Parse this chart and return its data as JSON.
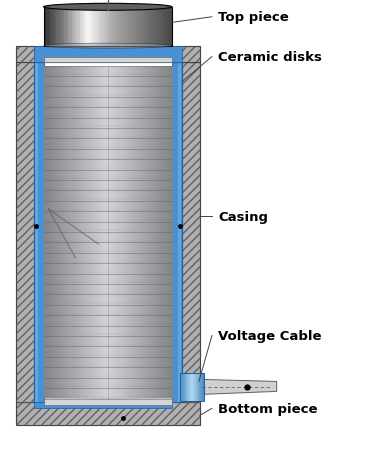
{
  "title": "",
  "background_color": "#ffffff",
  "labels": {
    "top_piece": "Top piece",
    "ceramic_disks": "Ceramic disks",
    "casing": "Casing",
    "voltage_cable": "Voltage Cable",
    "bottom_piece": "Bottom piece"
  },
  "colors": {
    "casing_blue": "#4a90d4",
    "casing_blue_dark": "#1a5fa0",
    "casing_blue_light": "#7bbde8",
    "casing_blue_mid": "#2e78c8",
    "metal_light": "#d4d4d4",
    "metal_mid": "#a8a8a8",
    "metal_dark": "#606060",
    "metal_darker": "#404040",
    "disk_light": "#c8ccd0",
    "disk_dark": "#7a8090",
    "disk_mid": "#a0a8b0",
    "black": "#000000",
    "white": "#ffffff",
    "top_cap_dark": "#282828",
    "top_cap_mid": "#686868",
    "top_cap_light": "#b8b8b8",
    "cable_light": "#d0d0d0",
    "cable_dark": "#909090",
    "hatch_bg": "#b0b0b0",
    "line_color": "#444444"
  },
  "figsize": [
    3.79,
    4.52
  ],
  "dpi": 100
}
